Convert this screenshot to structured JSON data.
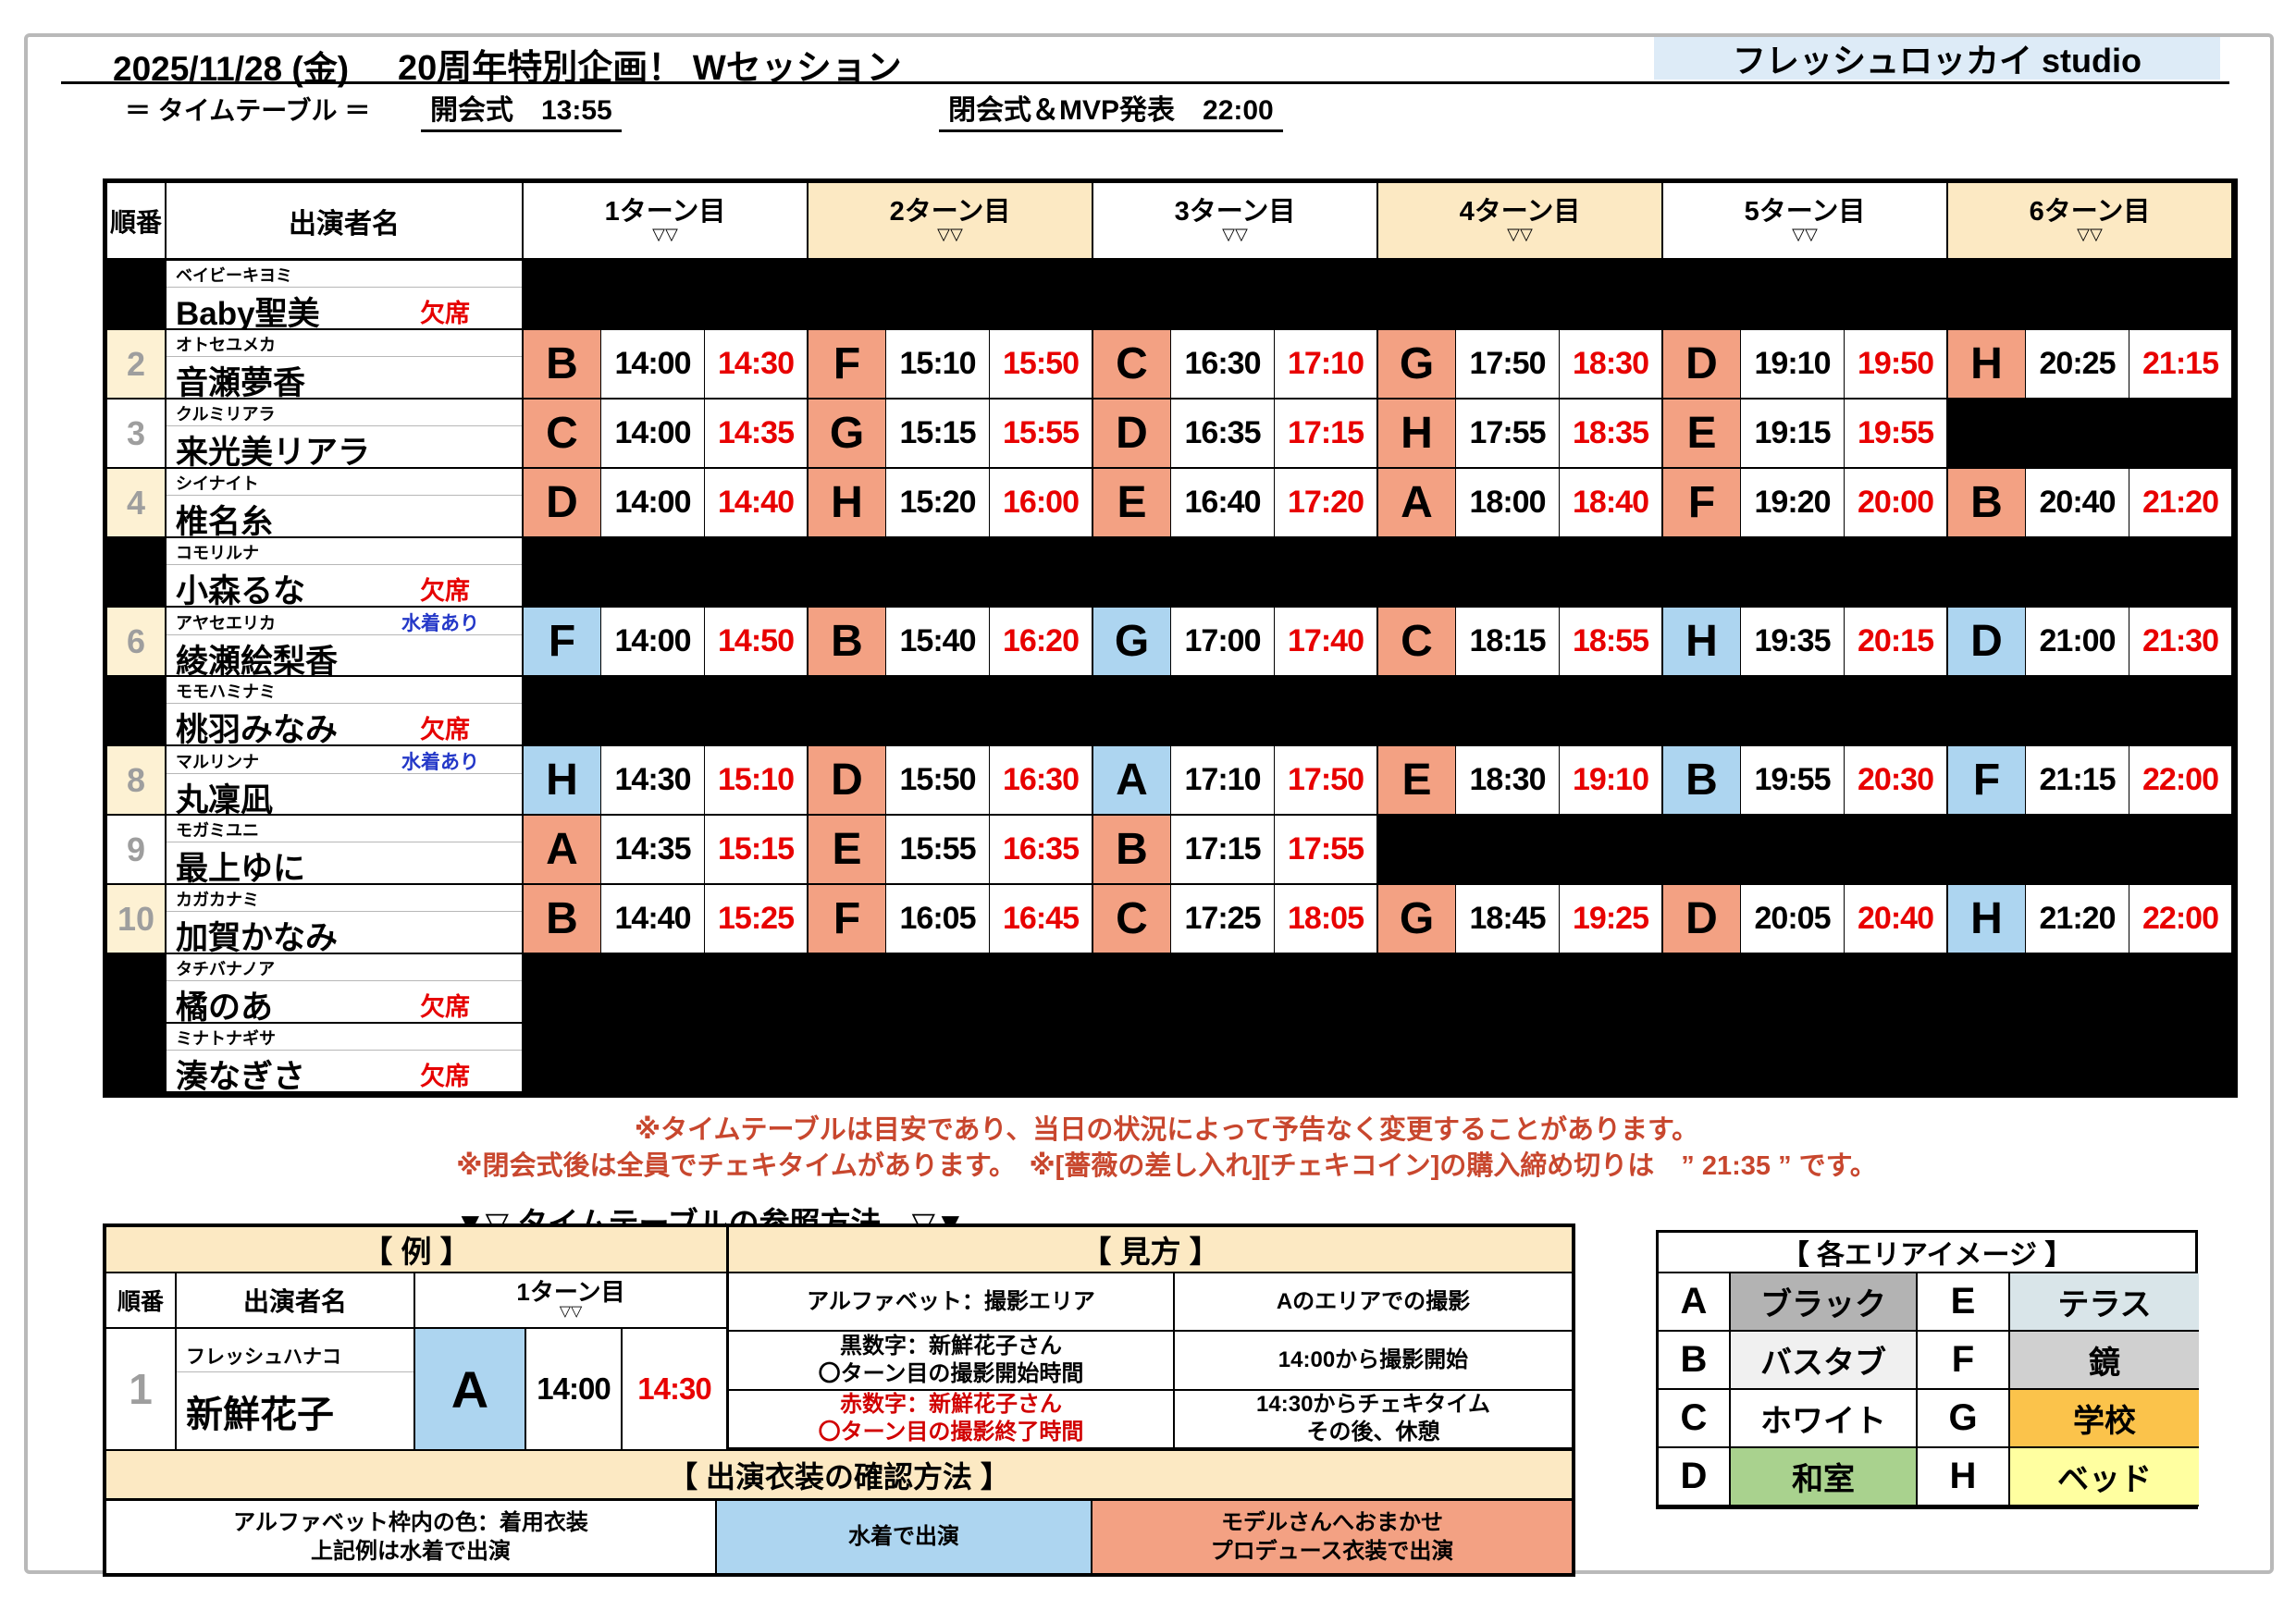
{
  "header": {
    "date": "2025/11/28 (金)",
    "title": "20周年特別企画！ Wセッション",
    "studio": "フレッシュロッカイ studio",
    "subtitle": "＝ タイムテーブル ＝",
    "opening": "開会式　13:55",
    "closing": "閉会式＆MVP発表　22:00"
  },
  "timetable": {
    "order_header": "順番",
    "name_header": "出演者名",
    "turns": [
      "1ターン目",
      "2ターン目",
      "3ターン目",
      "4ターン目",
      "5ターン目",
      "6ターン目"
    ],
    "marker": "▽▽",
    "rows": [
      {
        "no": "",
        "no_bg": "black",
        "furigana": "ベイビーキヨミ",
        "name": "Baby聖美",
        "status": "欠席",
        "status_type": "absent",
        "absent": true,
        "turns": null
      },
      {
        "no": "2",
        "no_bg": "cream",
        "furigana": "オトセユメカ",
        "name": "音瀬夢香",
        "status": "",
        "status_type": "",
        "absent": false,
        "turns": [
          [
            "B",
            "s",
            "14:00",
            "14:30"
          ],
          [
            "F",
            "s",
            "15:10",
            "15:50"
          ],
          [
            "C",
            "s",
            "16:30",
            "17:10"
          ],
          [
            "G",
            "s",
            "17:50",
            "18:30"
          ],
          [
            "D",
            "s",
            "19:10",
            "19:50"
          ],
          [
            "H",
            "s",
            "20:25",
            "21:15"
          ]
        ]
      },
      {
        "no": "3",
        "no_bg": "white",
        "furigana": "クルミリアラ",
        "name": "来光美リアラ",
        "status": "",
        "status_type": "",
        "absent": false,
        "turns": [
          [
            "C",
            "s",
            "14:00",
            "14:35"
          ],
          [
            "G",
            "s",
            "15:15",
            "15:55"
          ],
          [
            "D",
            "s",
            "16:35",
            "17:15"
          ],
          [
            "H",
            "s",
            "17:55",
            "18:35"
          ],
          [
            "E",
            "s",
            "19:15",
            "19:55"
          ],
          null
        ]
      },
      {
        "no": "4",
        "no_bg": "cream",
        "furigana": "シイナイト",
        "name": "椎名糸",
        "status": "",
        "status_type": "",
        "absent": false,
        "turns": [
          [
            "D",
            "s",
            "14:00",
            "14:40"
          ],
          [
            "H",
            "s",
            "15:20",
            "16:00"
          ],
          [
            "E",
            "s",
            "16:40",
            "17:20"
          ],
          [
            "A",
            "s",
            "18:00",
            "18:40"
          ],
          [
            "F",
            "s",
            "19:20",
            "20:00"
          ],
          [
            "B",
            "s",
            "20:40",
            "21:20"
          ]
        ]
      },
      {
        "no": "",
        "no_bg": "black",
        "furigana": "コモリルナ",
        "name": "小森るな",
        "status": "欠席",
        "status_type": "absent",
        "absent": true,
        "turns": null
      },
      {
        "no": "6",
        "no_bg": "cream",
        "furigana": "アヤセエリカ",
        "name": "綾瀬絵梨香",
        "status": "水着あり",
        "status_type": "swim",
        "absent": false,
        "turns": [
          [
            "F",
            "b",
            "14:00",
            "14:50"
          ],
          [
            "B",
            "s",
            "15:40",
            "16:20"
          ],
          [
            "G",
            "b",
            "17:00",
            "17:40"
          ],
          [
            "C",
            "s",
            "18:15",
            "18:55"
          ],
          [
            "H",
            "b",
            "19:35",
            "20:15"
          ],
          [
            "D",
            "b",
            "21:00",
            "21:30"
          ]
        ]
      },
      {
        "no": "",
        "no_bg": "black",
        "furigana": "モモハミナミ",
        "name": "桃羽みなみ",
        "status": "欠席",
        "status_type": "absent",
        "absent": true,
        "turns": null
      },
      {
        "no": "8",
        "no_bg": "cream",
        "furigana": "マルリンナ",
        "name": "丸凜凪",
        "status": "水着あり",
        "status_type": "swim",
        "absent": false,
        "turns": [
          [
            "H",
            "b",
            "14:30",
            "15:10"
          ],
          [
            "D",
            "s",
            "15:50",
            "16:30"
          ],
          [
            "A",
            "b",
            "17:10",
            "17:50"
          ],
          [
            "E",
            "s",
            "18:30",
            "19:10"
          ],
          [
            "B",
            "b",
            "19:55",
            "20:30"
          ],
          [
            "F",
            "b",
            "21:15",
            "22:00"
          ]
        ]
      },
      {
        "no": "9",
        "no_bg": "white",
        "furigana": "モガミユニ",
        "name": "最上ゆに",
        "status": "",
        "status_type": "",
        "absent": false,
        "turns": [
          [
            "A",
            "s",
            "14:35",
            "15:15"
          ],
          [
            "E",
            "s",
            "15:55",
            "16:35"
          ],
          [
            "B",
            "s",
            "17:15",
            "17:55"
          ],
          null,
          null,
          null
        ]
      },
      {
        "no": "10",
        "no_bg": "cream",
        "furigana": "カガカナミ",
        "name": "加賀かなみ",
        "status": "",
        "status_type": "",
        "absent": false,
        "turns": [
          [
            "B",
            "s",
            "14:40",
            "15:25"
          ],
          [
            "F",
            "s",
            "16:05",
            "16:45"
          ],
          [
            "C",
            "s",
            "17:25",
            "18:05"
          ],
          [
            "G",
            "s",
            "18:45",
            "19:25"
          ],
          [
            "D",
            "s",
            "20:05",
            "20:40"
          ],
          [
            "H",
            "b",
            "21:20",
            "22:00"
          ]
        ]
      },
      {
        "no": "",
        "no_bg": "black",
        "furigana": "タチバナノア",
        "name": "橘のあ",
        "status": "欠席",
        "status_type": "absent",
        "absent": true,
        "turns": null
      },
      {
        "no": "",
        "no_bg": "black",
        "furigana": "ミナトナギサ",
        "name": "湊なぎさ",
        "status": "欠席",
        "status_type": "absent",
        "absent": true,
        "turns": null
      }
    ]
  },
  "notes": [
    "※タイムテーブルは目安であり、当日の状況によって予告なく変更することがあります。",
    "※閉会式後は全員でチェキタイムがあります。　※[薔薇の差し入れ][チェキコイン]の購入締め切りは　” 21:35 ” です。"
  ],
  "ref_heading": "▼▽ タイムテーブルの参照方法　▽▼",
  "example": {
    "title": "【 例 】",
    "order_header": "順番",
    "name_header": "出演者名",
    "turn_header": "1ターン目",
    "marker": "▽▽",
    "no": "1",
    "furigana": "フレッシュハナコ",
    "name": "新鮮花子",
    "area": "A",
    "start": "14:00",
    "end": "14:30"
  },
  "howto": {
    "title": "【 見方 】",
    "rows": [
      {
        "left": [
          "アルファベット：撮影エリア"
        ],
        "right": [
          "Aのエリアでの撮影"
        ],
        "red": false
      },
      {
        "left": [
          "黒数字：新鮮花子さん",
          "〇ターン目の撮影開始時間"
        ],
        "right": [
          "14:00から撮影開始"
        ],
        "red": false
      },
      {
        "left": [
          "赤数字：新鮮花子さん",
          "〇ターン目の撮影終了時間"
        ],
        "right": [
          "14:30からチェキタイム",
          "その後、休憩"
        ],
        "red": true
      }
    ]
  },
  "costume": {
    "title": "【 出演衣装の確認方法 】",
    "cells": [
      {
        "lines": [
          "アルファベット枠内の色：着用衣装",
          "上記例は水着で出演"
        ],
        "bg": "white"
      },
      {
        "lines": [
          "水着で出演"
        ],
        "bg": "blue"
      },
      {
        "lines": [
          "モデルさんへおまかせ",
          "プロデュース衣装で出演"
        ],
        "bg": "salmon"
      }
    ]
  },
  "areas": {
    "title": "【 各エリアイメージ 】",
    "items": [
      {
        "letter": "A",
        "label": "ブラック",
        "color": "#b3b3b3"
      },
      {
        "letter": "E",
        "label": "テラス",
        "color": "#d9e5e9"
      },
      {
        "letter": "B",
        "label": "バスタブ",
        "color": "#f0f0f0"
      },
      {
        "letter": "F",
        "label": "鏡",
        "color": "#d0d0d0"
      },
      {
        "letter": "C",
        "label": "ホワイト",
        "color": "#ffffff"
      },
      {
        "letter": "G",
        "label": "学校",
        "color": "#fbc34b"
      },
      {
        "letter": "D",
        "label": "和室",
        "color": "#a9d28e"
      },
      {
        "letter": "H",
        "label": "ベッド",
        "color": "#ffffa0"
      }
    ]
  },
  "colors": {
    "salmon": "#f3a183",
    "blue": "#add5f0",
    "tan": "#fce9c3",
    "cream": "#fdf1d3",
    "studio_bg": "#ddebf7",
    "time_red": "#e80000",
    "swim_blue": "#2438c8",
    "note_red": "#c8472e"
  }
}
